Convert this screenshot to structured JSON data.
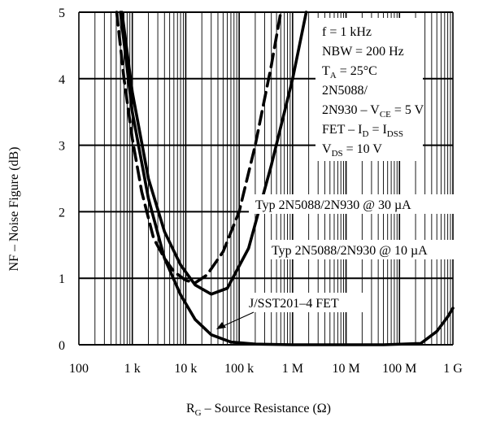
{
  "chart_data": {
    "type": "line",
    "xlabel": {
      "main": "R",
      "sub": "G",
      "rest": " – Source Resistance (Ω)"
    },
    "ylabel": "NF – Noise Figure (dB)",
    "x_scale": "log",
    "xlim": [
      100,
      1000000000
    ],
    "ylim": [
      0,
      5
    ],
    "x_ticks": [
      {
        "value": 100,
        "label": "100"
      },
      {
        "value": 1000,
        "label": "1 k"
      },
      {
        "value": 10000,
        "label": "10 k"
      },
      {
        "value": 100000,
        "label": "100 k"
      },
      {
        "value": 1000000,
        "label": "1 M"
      },
      {
        "value": 10000000,
        "label": "10 M"
      },
      {
        "value": 100000000,
        "label": "100 M"
      },
      {
        "value": 1000000000,
        "label": "1 G"
      }
    ],
    "y_ticks": [
      {
        "value": 0,
        "label": "0"
      },
      {
        "value": 1,
        "label": "1"
      },
      {
        "value": 2,
        "label": "2"
      },
      {
        "value": 3,
        "label": "3"
      },
      {
        "value": 4,
        "label": "4"
      },
      {
        "value": 5,
        "label": "5"
      }
    ],
    "grid": true,
    "conditions": [
      {
        "text": "f = 1 kHz"
      },
      {
        "text": "NBW = 200 Hz"
      },
      {
        "text": "T",
        "sub": "A",
        "after": " = 25°C"
      },
      {
        "text": "2N5088/"
      },
      {
        "text": "2N930 – V",
        "sub": "CE",
        "after": " = 5 V"
      },
      {
        "text": "FET – I",
        "sub": "D",
        "after": " = I",
        "sub2": "DSS"
      },
      {
        "text": "V",
        "sub": "DS",
        "after": " = 10 V"
      }
    ],
    "series": [
      {
        "name": "Typ 2N5088/2N930 @ 30 µA",
        "style": "dashed",
        "points": [
          [
            510,
            5.0
          ],
          [
            700,
            4.0
          ],
          [
            1000,
            3.1
          ],
          [
            1500,
            2.3
          ],
          [
            2500,
            1.6
          ],
          [
            4000,
            1.3
          ],
          [
            6000,
            1.1
          ],
          [
            10000,
            0.97
          ],
          [
            15000,
            0.93
          ],
          [
            25000,
            1.05
          ],
          [
            50000,
            1.4
          ],
          [
            100000,
            2.0
          ],
          [
            200000,
            3.0
          ],
          [
            400000,
            4.2
          ],
          [
            600000,
            5.0
          ]
        ]
      },
      {
        "name": "Typ 2N5088/2N930 @ 10 µA",
        "style": "solid",
        "points": [
          [
            640,
            5.0
          ],
          [
            1000,
            3.8
          ],
          [
            2000,
            2.5
          ],
          [
            4000,
            1.7
          ],
          [
            8000,
            1.2
          ],
          [
            15000,
            0.9
          ],
          [
            30000,
            0.76
          ],
          [
            60000,
            0.85
          ],
          [
            150000,
            1.45
          ],
          [
            400000,
            2.7
          ],
          [
            1000000,
            4.0
          ],
          [
            1800000,
            5.0
          ]
        ]
      },
      {
        "name": "J/SST201–4 FET",
        "style": "solid",
        "points": [
          [
            600,
            5.0
          ],
          [
            1000,
            3.5
          ],
          [
            2000,
            2.2
          ],
          [
            4000,
            1.3
          ],
          [
            8000,
            0.75
          ],
          [
            15000,
            0.38
          ],
          [
            30000,
            0.15
          ],
          [
            70000,
            0.04
          ],
          [
            200000,
            0.01
          ],
          [
            1000000,
            0.0
          ],
          [
            50000000,
            0.0
          ],
          [
            250000000,
            0.02
          ],
          [
            500000000,
            0.2
          ],
          [
            800000000,
            0.42
          ],
          [
            1000000000,
            0.55
          ]
        ]
      }
    ],
    "annotations": [
      {
        "text": "Typ 2N5088/2N930 @ 30 µA"
      },
      {
        "text": "Typ 2N5088/2N930 @ 10 µA"
      },
      {
        "text": "J/SST201–4 FET"
      }
    ]
  }
}
